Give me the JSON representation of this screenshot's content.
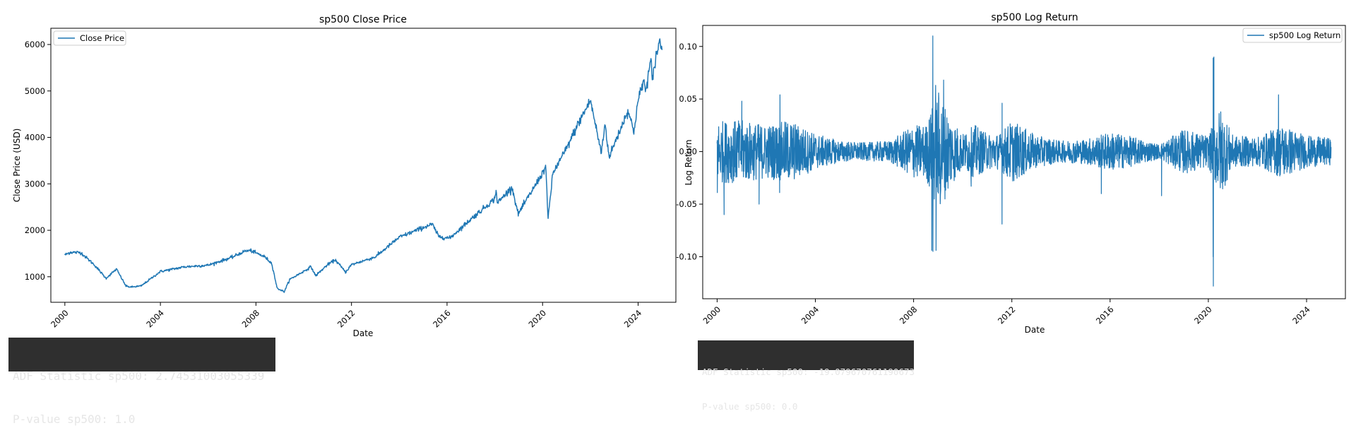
{
  "chart_data": [
    {
      "type": "line",
      "title": "sp500 Close Price",
      "xlabel": "Date",
      "ylabel": "Close Price (USD)",
      "xlim": [
        "1999-06-01",
        "2025-08-01"
      ],
      "ylim": [
        450,
        6350
      ],
      "x_ticks": [
        "2000",
        "2004",
        "2008",
        "2012",
        "2016",
        "2020",
        "2024"
      ],
      "y_ticks": [
        1000,
        2000,
        3000,
        4000,
        5000,
        6000
      ],
      "legend": {
        "placement": "top-left",
        "entries": [
          "Close Price"
        ]
      },
      "grid": false,
      "series_color": "#1f77b4",
      "series": [
        {
          "name": "Close Price",
          "x": [
            "2000-01-01",
            "2000-03-24",
            "2000-09-01",
            "2001-04-01",
            "2001-09-21",
            "2002-03-01",
            "2002-07-24",
            "2002-10-09",
            "2003-03-11",
            "2003-12-31",
            "2004-12-31",
            "2005-12-31",
            "2006-12-31",
            "2007-07-15",
            "2007-10-09",
            "2008-05-19",
            "2008-09-01",
            "2008-11-20",
            "2009-03-09",
            "2009-06-01",
            "2009-12-31",
            "2010-04-23",
            "2010-07-02",
            "2010-12-31",
            "2011-04-29",
            "2011-10-03",
            "2011-12-30",
            "2012-12-31",
            "2013-12-31",
            "2014-12-31",
            "2015-05-21",
            "2015-08-25",
            "2016-02-11",
            "2016-12-30",
            "2017-12-29",
            "2018-01-26",
            "2018-02-08",
            "2018-09-20",
            "2018-12-24",
            "2019-12-31",
            "2020-02-19",
            "2020-03-23",
            "2020-06-08",
            "2020-12-31",
            "2021-06-30",
            "2022-01-03",
            "2022-06-16",
            "2022-08-16",
            "2022-10-12",
            "2022-12-30",
            "2023-07-31",
            "2023-10-27",
            "2023-12-29",
            "2024-03-28",
            "2024-04-19",
            "2024-07-16",
            "2024-08-05",
            "2024-09-30",
            "2024-12-06",
            "2024-12-20",
            "2025-01-01"
          ],
          "values": [
            1469,
            1527,
            1520,
            1250,
            966,
            1165,
            797,
            777,
            800,
            1112,
            1212,
            1248,
            1418,
            1552,
            1565,
            1426,
            1282,
            752,
            677,
            942,
            1115,
            1217,
            1022,
            1258,
            1364,
            1099,
            1258,
            1426,
            1848,
            2059,
            2131,
            1867,
            1829,
            2239,
            2674,
            2873,
            2582,
            2931,
            2351,
            3231,
            3386,
            2237,
            3232,
            3756,
            4298,
            4797,
            3667,
            4305,
            3577,
            3840,
            4589,
            4117,
            4770,
            5254,
            4967,
            5667,
            5186,
            5762,
            6090,
            5930,
            5882
          ]
        }
      ],
      "annotation_box": [
        "ADF Statistic sp500: 2.74531003055339",
        "P-value sp500: 1.0"
      ]
    },
    {
      "type": "line",
      "title": "sp500 Log Return",
      "xlabel": "Date",
      "ylabel": "Log Return",
      "xlim": [
        "1999-06-01",
        "2025-08-01"
      ],
      "ylim": [
        -0.14,
        0.12
      ],
      "x_ticks": [
        "2000",
        "2004",
        "2008",
        "2012",
        "2016",
        "2020",
        "2024"
      ],
      "y_ticks": [
        "-0.10",
        "-0.05",
        "0.00",
        "0.05",
        "0.10"
      ],
      "legend": {
        "placement": "top-right",
        "entries": [
          "sp500 Log Return"
        ]
      },
      "grid": false,
      "series_color": "#1f77b4",
      "series": [
        {
          "name": "sp500 Log Return",
          "x": [
            "2000-01-04",
            "2000-04-14",
            "2001-01-03",
            "2001-09-17",
            "2002-07-24",
            "2002-07-19",
            "2008-09-29",
            "2008-10-13",
            "2008-10-15",
            "2008-11-24",
            "2008-12-01",
            "2009-03-23",
            "2010-05-06",
            "2011-08-08",
            "2011-08-09",
            "2015-08-24",
            "2018-02-05",
            "2020-03-12",
            "2020-03-13",
            "2020-03-16",
            "2020-03-24",
            "2022-11-10"
          ],
          "values": [
            -0.039,
            -0.06,
            0.048,
            -0.05,
            0.054,
            -0.039,
            -0.094,
            0.11,
            -0.095,
            0.063,
            -0.094,
            0.068,
            -0.033,
            -0.069,
            0.046,
            -0.04,
            -0.042,
            -0.1,
            0.089,
            -0.128,
            0.09,
            0.054
          ],
          "volatility_envelope": {
            "x": [
              "1999-12-31",
              "2000-12-31",
              "2001-12-31",
              "2002-12-31",
              "2003-12-31",
              "2004-12-31",
              "2005-12-31",
              "2006-12-31",
              "2007-06-30",
              "2007-12-31",
              "2008-06-30",
              "2008-12-31",
              "2009-06-30",
              "2009-12-31",
              "2010-06-30",
              "2010-12-31",
              "2011-06-30",
              "2011-12-31",
              "2012-12-31",
              "2013-12-31",
              "2014-12-31",
              "2015-12-31",
              "2016-12-31",
              "2017-12-31",
              "2018-12-31",
              "2019-12-31",
              "2020-06-30",
              "2020-12-31",
              "2021-12-31",
              "2022-12-31",
              "2023-12-31",
              "2024-12-31"
            ],
            "amplitude": [
              0.035,
              0.035,
              0.03,
              0.035,
              0.02,
              0.012,
              0.01,
              0.012,
              0.02,
              0.03,
              0.03,
              0.07,
              0.04,
              0.02,
              0.03,
              0.02,
              0.02,
              0.035,
              0.018,
              0.012,
              0.014,
              0.022,
              0.016,
              0.008,
              0.025,
              0.018,
              0.05,
              0.018,
              0.016,
              0.03,
              0.018,
              0.015
            ]
          }
        }
      ],
      "annotation_box": [
        "ADF Statistic sp500: -19.079670761190673",
        "P-value sp500: 0.0"
      ]
    }
  ]
}
